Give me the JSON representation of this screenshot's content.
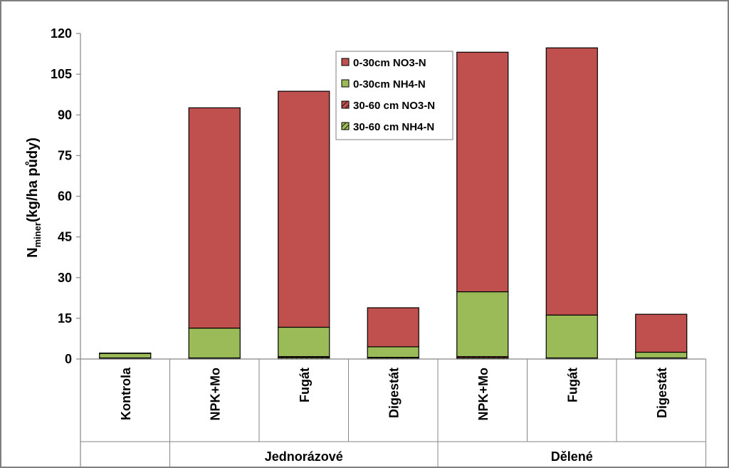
{
  "chart_data": {
    "type": "bar",
    "stacked": true,
    "ylabel_main": "N",
    "ylabel_sub": "miner",
    "ylabel_rest": "(kg/ha půdy)",
    "ylim": [
      0,
      120
    ],
    "yticks": [
      "0",
      "15",
      "30",
      "45",
      "60",
      "75",
      "90",
      "105",
      "120"
    ],
    "categories": [
      "Kontrola",
      "NPK+Mo",
      "Fugát",
      "Digestát",
      "NPK+Mo",
      "Fugát",
      "Digestát"
    ],
    "groups": [
      {
        "label": "",
        "start": 0,
        "end": 0
      },
      {
        "label": "Jednorázové",
        "start": 1,
        "end": 3
      },
      {
        "label": "Dělené",
        "start": 4,
        "end": 6
      }
    ],
    "series": [
      {
        "name": "30-60 cm NH4-N",
        "color": "#9bbb59",
        "pattern": "hatch",
        "values": [
          0.3,
          0.3,
          0.5,
          0.4,
          0.4,
          0.3,
          0.3
        ]
      },
      {
        "name": "30-60 cm NO3-N",
        "color": "#c0504d",
        "pattern": "hatch",
        "values": [
          0.1,
          0.1,
          0.4,
          0.2,
          0.5,
          0.1,
          0.1
        ]
      },
      {
        "name": "0-30cm NH4-N",
        "color": "#9bbb59",
        "pattern": "solid",
        "values": [
          1.7,
          11.0,
          10.8,
          3.9,
          23.9,
          15.8,
          2.1
        ]
      },
      {
        "name": "0-30cm NO3-N",
        "color": "#c0504d",
        "pattern": "solid",
        "values": [
          0.1,
          81.2,
          87.0,
          14.4,
          88.3,
          98.5,
          14.0
        ]
      }
    ],
    "legend": [
      "0-30cm NO3-N",
      "0-30cm NH4-N",
      "30-60 cm NO3-N",
      "30-60 cm NH4-N"
    ],
    "legend_placement": "top-center",
    "grid": false
  }
}
